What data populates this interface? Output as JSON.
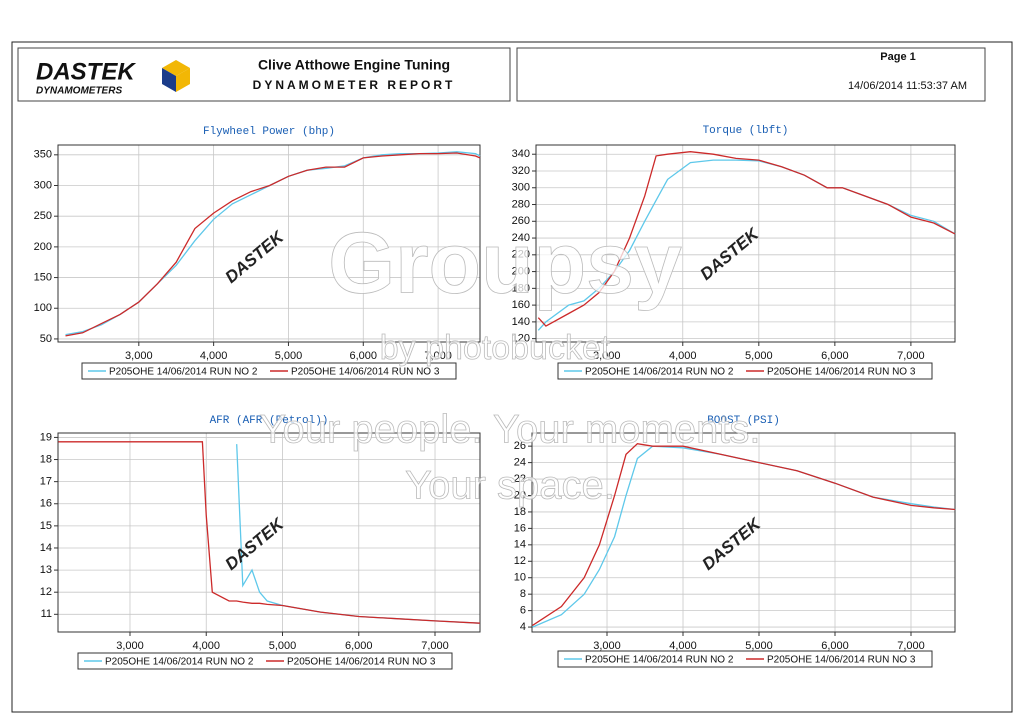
{
  "header": {
    "brand": "DASTEK",
    "brand_sub": "DYNAMOMETERS",
    "company": "Clive Atthowe Engine Tuning",
    "report": "DYNAMOMETER REPORT",
    "page": "Page 1",
    "timestamp": "14/06/2014 11:53:37 AM"
  },
  "watermark": {
    "title": "Groupsy",
    "subtitle": "by photobucket",
    "slogan_1": "Your people. Your moments.",
    "slogan_2": "Your space.",
    "stamp": "DASTEK"
  },
  "chart_data": [
    {
      "type": "line",
      "title": "Flywheel Power (bhp)",
      "grid": true,
      "x": [
        2020,
        2250,
        2500,
        2750,
        3000,
        3250,
        3500,
        3750,
        4000,
        4250,
        4500,
        4750,
        5000,
        5250,
        5500,
        5750,
        6000,
        6250,
        6500,
        6750,
        7000,
        7250,
        7500,
        7560
      ],
      "series": [
        {
          "name": "P205OHE 14/06/2014 RUN NO 2",
          "color": "#5ec8ea",
          "values": [
            57,
            62,
            73,
            90,
            110,
            140,
            170,
            210,
            245,
            270,
            285,
            300,
            315,
            325,
            328,
            332,
            345,
            350,
            352,
            352,
            353,
            355,
            352,
            348
          ]
        },
        {
          "name": "P205OHE 14/06/2014 RUN NO 3",
          "color": "#cc2a2a",
          "values": [
            55,
            60,
            75,
            90,
            110,
            140,
            175,
            230,
            255,
            275,
            290,
            300,
            315,
            325,
            330,
            330,
            345,
            348,
            350,
            352,
            352,
            353,
            348,
            345
          ]
        }
      ],
      "xlim": [
        1920,
        7560
      ],
      "ylim": [
        45,
        366
      ],
      "xticks": [
        {
          "value": 3000,
          "label": "3,000"
        },
        {
          "value": 4000,
          "label": "4,000"
        },
        {
          "value": 5000,
          "label": "5,000"
        },
        {
          "value": 6000,
          "label": "6,000"
        },
        {
          "value": 7000,
          "label": "7,000"
        }
      ],
      "yticks": [
        50,
        100,
        150,
        200,
        250,
        300,
        350
      ]
    },
    {
      "type": "line",
      "title": "Torque (lbft)",
      "grid": true,
      "x": [
        2100,
        2200,
        2500,
        2700,
        2900,
        3100,
        3300,
        3500,
        3650,
        3800,
        4100,
        4400,
        4700,
        5000,
        5300,
        5600,
        5900,
        6100,
        6400,
        6700,
        7000,
        7300,
        7580
      ],
      "series": [
        {
          "name": "P205OHE 14/06/2014 RUN NO 2",
          "color": "#5ec8ea",
          "values": [
            130,
            140,
            160,
            165,
            180,
            200,
            225,
            260,
            285,
            310,
            330,
            333,
            333,
            332,
            325,
            315,
            300,
            300,
            290,
            280,
            267,
            260,
            245
          ]
        },
        {
          "name": "P205OHE 14/06/2014 RUN NO 3",
          "color": "#cc2a2a",
          "values": [
            145,
            135,
            150,
            160,
            175,
            200,
            240,
            290,
            338,
            340,
            343,
            340,
            335,
            333,
            325,
            315,
            300,
            300,
            290,
            280,
            265,
            258,
            245
          ]
        }
      ],
      "xlim": [
        2070,
        7580
      ],
      "ylim": [
        116,
        351
      ],
      "xticks": [
        {
          "value": 3000,
          "label": "3,000"
        },
        {
          "value": 4000,
          "label": "4,000"
        },
        {
          "value": 5000,
          "label": "5,000"
        },
        {
          "value": 6000,
          "label": "6,000"
        },
        {
          "value": 7000,
          "label": "7,000"
        }
      ],
      "yticks": [
        120,
        140,
        160,
        180,
        200,
        220,
        240,
        260,
        280,
        300,
        320,
        340
      ]
    },
    {
      "type": "line",
      "title": "AFR (AFR (Petrol))",
      "grid": true,
      "x": [
        2060,
        3000,
        3950,
        4000,
        4080,
        4300,
        4400,
        4480,
        4600,
        4700,
        4800,
        5000,
        5500,
        6000,
        6500,
        7000,
        7590
      ],
      "series": [
        {
          "name": "P205OHE 14/06/2014 RUN NO 2",
          "color": "#5ec8ea",
          "values": [
            null,
            null,
            null,
            null,
            null,
            null,
            18.7,
            12.3,
            13.0,
            12.0,
            11.6,
            11.4,
            11.1,
            10.9,
            10.8,
            10.7,
            10.6
          ]
        },
        {
          "name": "P205OHE 14/06/2014 RUN NO 3",
          "color": "#cc2a2a",
          "values": [
            18.8,
            18.8,
            18.8,
            15.5,
            12.0,
            11.6,
            11.6,
            11.55,
            11.5,
            11.5,
            11.45,
            11.4,
            11.1,
            10.9,
            10.8,
            10.7,
            10.6
          ]
        }
      ],
      "xlim": [
        2056,
        7590
      ],
      "ylim": [
        10.2,
        19.2
      ],
      "xticks": [
        {
          "value": 3000,
          "label": "3,000"
        },
        {
          "value": 4000,
          "label": "4,000"
        },
        {
          "value": 5000,
          "label": "5,000"
        },
        {
          "value": 6000,
          "label": "6,000"
        },
        {
          "value": 7000,
          "label": "7,000"
        }
      ],
      "yticks": [
        11,
        12,
        13,
        14,
        15,
        16,
        17,
        18,
        19
      ]
    },
    {
      "type": "line",
      "title": "BOOST (PSI)",
      "grid": true,
      "x": [
        2020,
        2400,
        2700,
        2900,
        3100,
        3250,
        3400,
        3600,
        4000,
        4500,
        5000,
        5500,
        6000,
        6500,
        7000,
        7300,
        7580
      ],
      "series": [
        {
          "name": "P205OHE 14/06/2014 RUN NO 2",
          "color": "#5ec8ea",
          "values": [
            4,
            5.5,
            8,
            11,
            15,
            20,
            24.5,
            26,
            25.8,
            25,
            24,
            23,
            21.5,
            19.8,
            19,
            18.6,
            18.3
          ]
        },
        {
          "name": "P205OHE 14/06/2014 RUN NO 3",
          "color": "#cc2a2a",
          "values": [
            4.2,
            6.5,
            10,
            14,
            20,
            25,
            26.3,
            26,
            26,
            25,
            24,
            23,
            21.5,
            19.8,
            18.8,
            18.5,
            18.3
          ]
        }
      ],
      "xlim": [
        2013,
        7579
      ],
      "ylim": [
        3.4,
        27.6
      ],
      "xticks": [
        {
          "value": 3000,
          "label": "3,000"
        },
        {
          "value": 4000,
          "label": "4,000"
        },
        {
          "value": 5000,
          "label": "5,000"
        },
        {
          "value": 6000,
          "label": "6,000"
        },
        {
          "value": 7000,
          "label": "7,000"
        }
      ],
      "yticks": [
        4,
        6,
        8,
        10,
        12,
        14,
        16,
        18,
        20,
        22,
        24,
        26
      ]
    }
  ]
}
